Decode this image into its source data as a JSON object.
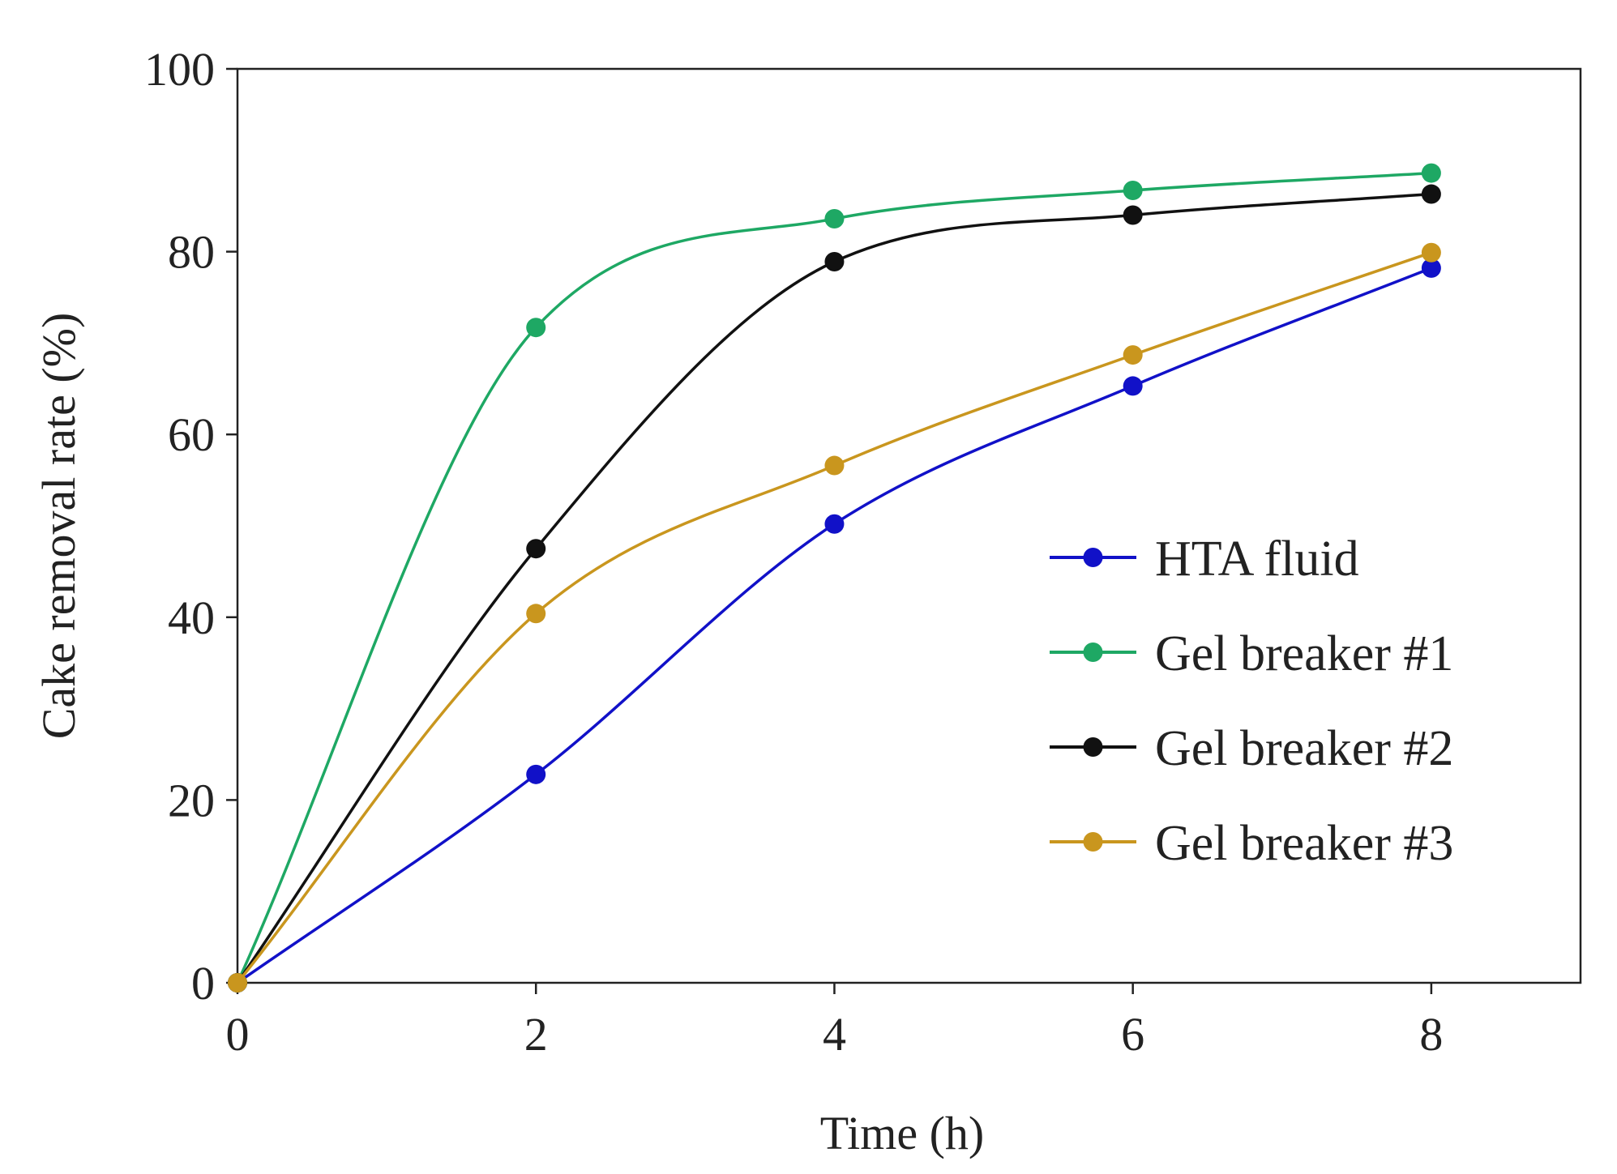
{
  "chart_data": {
    "type": "line",
    "title": "",
    "xlabel": "Time (h)",
    "ylabel": "Cake removal rate (%)",
    "x": [
      0,
      2,
      4,
      6,
      8
    ],
    "xlim": [
      0,
      9
    ],
    "ylim": [
      0,
      100
    ],
    "xticks": [
      0,
      2,
      4,
      6,
      8
    ],
    "yticks": [
      0,
      20,
      40,
      60,
      80,
      100
    ],
    "grid": false,
    "legend_position": "center-right",
    "series": [
      {
        "name": "HTA fluid",
        "color": "#1111c8",
        "values": [
          0,
          22.8,
          50.2,
          65.3,
          78.2
        ]
      },
      {
        "name": "Gel breaker #1",
        "color": "#1ea864",
        "values": [
          0,
          71.7,
          83.6,
          86.7,
          88.6
        ]
      },
      {
        "name": "Gel breaker #2",
        "color": "#111111",
        "values": [
          0,
          47.5,
          78.9,
          84.0,
          86.3
        ]
      },
      {
        "name": "Gel breaker #3",
        "color": "#c9961e",
        "values": [
          0,
          40.4,
          56.6,
          68.7,
          79.9
        ]
      }
    ]
  }
}
